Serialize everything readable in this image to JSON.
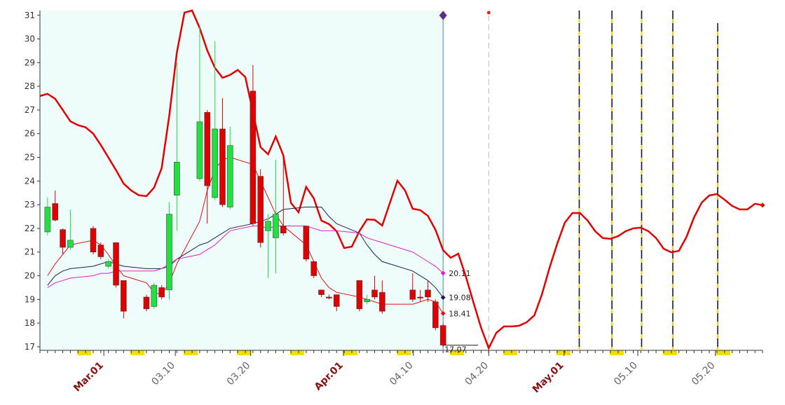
{
  "chart_data": {
    "type": "candlestick",
    "xlim": [
      0,
      95
    ],
    "ylim": [
      16.85,
      31.2
    ],
    "yticks": [
      17,
      18,
      19,
      20,
      21,
      22,
      23,
      24,
      25,
      26,
      27,
      28,
      29,
      30,
      31
    ],
    "xticks": [
      {
        "value": 8.4,
        "label": "Mar.01"
      },
      {
        "value": 17.8,
        "label": "03.10"
      },
      {
        "value": 27.7,
        "label": "03.20"
      },
      {
        "value": 39.9,
        "label": "Apr.01"
      },
      {
        "value": 49.1,
        "label": "04.10"
      },
      {
        "value": 59,
        "label": "04.20"
      },
      {
        "value": 68.9,
        "label": "May.01"
      },
      {
        "value": 78.6,
        "label": "05.10"
      },
      {
        "value": 88.8,
        "label": "05.20"
      }
    ],
    "up_color": "#22e040",
    "down_color": "#e00000",
    "candles": {
      "x": [
        1,
        2,
        3,
        4,
        7,
        8,
        9,
        10,
        11,
        14,
        15,
        16,
        17,
        18,
        21,
        22,
        23,
        24,
        25,
        28,
        29,
        30,
        31,
        32,
        35,
        36,
        37,
        38,
        39,
        42,
        43,
        44,
        45,
        49,
        50,
        51,
        52,
        53
      ],
      "open": [
        21.85,
        23.05,
        21.95,
        21.2,
        22.0,
        21.3,
        20.4,
        21.4,
        19.8,
        19.1,
        18.7,
        19.5,
        19.4,
        23.4,
        24.1,
        26.9,
        23.3,
        26.2,
        22.9,
        27.8,
        24.2,
        21.9,
        21.6,
        22.1,
        22.1,
        20.6,
        19.4,
        19.1,
        19.2,
        19.8,
        18.9,
        19.4,
        19.3,
        19.4,
        19.1,
        19.4,
        18.9,
        17.9
      ],
      "high": [
        23.3,
        23.6,
        22.0,
        22.8,
        22.1,
        21.4,
        20.7,
        21.4,
        19.8,
        19.2,
        19.7,
        19.6,
        23.1,
        29.0,
        30.5,
        27.0,
        29.9,
        27.5,
        26.3,
        28.9,
        24.5,
        22.6,
        24.9,
        25.1,
        22.1,
        20.6,
        19.4,
        19.2,
        19.2,
        19.8,
        19.2,
        20.0,
        19.8,
        20.1,
        19.4,
        19.8,
        19.0,
        18.0
      ],
      "low": [
        21.7,
        22.3,
        20.9,
        21.1,
        20.9,
        20.7,
        20.3,
        19.5,
        18.2,
        18.5,
        18.6,
        19.0,
        19.0,
        21.9,
        24.0,
        22.2,
        23.2,
        22.9,
        22.8,
        22.1,
        21.2,
        19.9,
        20.1,
        21.7,
        20.6,
        19.9,
        19.1,
        19.0,
        18.5,
        18.5,
        18.8,
        19.0,
        18.4,
        18.9,
        18.9,
        18.9,
        17.7,
        17.0
      ],
      "close": [
        22.9,
        22.35,
        21.2,
        21.5,
        21.0,
        20.8,
        20.6,
        19.6,
        18.5,
        18.6,
        19.6,
        19.1,
        22.6,
        24.8,
        26.5,
        23.8,
        26.2,
        23.0,
        25.5,
        22.2,
        21.4,
        22.3,
        22.6,
        21.8,
        20.7,
        20.0,
        19.2,
        19.1,
        18.7,
        18.6,
        19.0,
        19.1,
        18.5,
        19.0,
        19.1,
        19.1,
        17.8,
        17.07
      ]
    },
    "series": [
      {
        "color": "#e00000",
        "x": [
          0,
          1,
          2,
          3,
          4,
          5,
          6,
          7,
          8,
          9,
          10,
          11,
          12,
          13,
          14,
          15,
          16,
          17,
          18,
          19,
          20,
          21,
          22,
          23,
          24,
          25,
          26,
          27,
          28,
          29,
          30,
          31,
          32,
          33,
          34,
          35,
          36,
          37,
          38,
          39,
          40,
          41,
          42,
          43,
          44,
          45,
          46,
          47,
          48,
          49,
          50,
          51,
          52,
          53,
          54,
          55,
          56,
          57,
          58,
          59,
          60,
          61,
          62,
          63,
          64,
          65,
          66,
          67,
          68,
          69,
          70,
          71,
          72,
          73,
          74,
          75,
          76,
          77,
          78,
          79,
          80,
          81,
          82,
          83,
          84,
          85,
          86,
          87,
          88,
          89,
          90,
          91,
          92,
          93,
          94,
          95
        ],
        "values": [
          27.59,
          27.68,
          27.47,
          27.0,
          26.52,
          26.36,
          26.27,
          26.0,
          25.52,
          24.99,
          24.46,
          23.89,
          23.6,
          23.4,
          23.36,
          23.72,
          24.54,
          26.76,
          29.43,
          31.11,
          31.2,
          30.46,
          29.51,
          28.78,
          28.36,
          28.48,
          28.69,
          28.39,
          26.91,
          25.43,
          25.13,
          25.88,
          25.08,
          23.07,
          22.68,
          23.75,
          23.27,
          22.33,
          22.18,
          21.88,
          21.17,
          21.23,
          21.88,
          22.38,
          22.36,
          22.12,
          23.07,
          24.01,
          23.6,
          22.83,
          22.77,
          22.53,
          21.94,
          21.08,
          20.76,
          20.93,
          19.96,
          18.86,
          17.8,
          16.94,
          17.59,
          17.86,
          17.86,
          17.89,
          18.04,
          18.33,
          19.22,
          20.34,
          21.35,
          22.24,
          22.65,
          22.65,
          22.33,
          21.88,
          21.59,
          21.56,
          21.67,
          21.88,
          22.0,
          22.03,
          21.88,
          21.59,
          21.14,
          20.99,
          21.05,
          21.64,
          22.47,
          23.09,
          23.39,
          23.45,
          23.21,
          22.95,
          22.8,
          22.8,
          23.04,
          22.98
        ]
      },
      {
        "color": "#e01010",
        "x": [
          1,
          2,
          3,
          4,
          7,
          8,
          9,
          10,
          11,
          14,
          15,
          16,
          17,
          18,
          21,
          22,
          23,
          24,
          25,
          28,
          29,
          30,
          31,
          32,
          35,
          36,
          37,
          38,
          39,
          42,
          43,
          44,
          45,
          49,
          50,
          51,
          52,
          53
        ],
        "values": [
          20.0,
          20.5,
          20.9,
          21.3,
          21.5,
          21.3,
          20.9,
          20.4,
          20.0,
          19.7,
          19.3,
          19.2,
          19.7,
          20.5,
          22.3,
          23.6,
          24.5,
          24.9,
          25.0,
          24.7,
          24.0,
          23.3,
          22.6,
          22.1,
          21.3,
          20.6,
          19.9,
          19.5,
          19.3,
          19.1,
          19.0,
          18.9,
          18.8,
          18.8,
          18.9,
          19.0,
          18.9,
          18.41
        ]
      },
      {
        "color": "#202040",
        "x": [
          1,
          2,
          3,
          4,
          7,
          8,
          9,
          10,
          11,
          14,
          15,
          16,
          17,
          18,
          21,
          22,
          23,
          24,
          25,
          28,
          29,
          30,
          31,
          32,
          35,
          36,
          37,
          38,
          39,
          42,
          43,
          44,
          45,
          49,
          50,
          51,
          52,
          53
        ],
        "values": [
          19.6,
          20.0,
          20.2,
          20.3,
          20.4,
          20.5,
          20.6,
          20.5,
          20.4,
          20.3,
          20.3,
          20.3,
          20.4,
          20.7,
          21.3,
          21.4,
          21.6,
          21.8,
          22.0,
          22.2,
          22.3,
          22.4,
          22.6,
          22.8,
          22.9,
          22.9,
          22.9,
          22.5,
          22.2,
          21.8,
          21.3,
          20.9,
          20.6,
          20.2,
          20.0,
          19.8,
          19.5,
          19.08
        ]
      },
      {
        "color": "#e020c0",
        "x": [
          1,
          2,
          3,
          4,
          7,
          8,
          9,
          10,
          11,
          14,
          15,
          16,
          17,
          18,
          21,
          22,
          23,
          24,
          25,
          28,
          29,
          30,
          31,
          32,
          35,
          36,
          37,
          38,
          39,
          42,
          43,
          44,
          45,
          49,
          50,
          51,
          52,
          53
        ],
        "values": [
          19.5,
          19.7,
          19.8,
          19.9,
          20.0,
          20.1,
          20.1,
          20.2,
          20.2,
          20.2,
          20.2,
          20.3,
          20.5,
          20.7,
          20.9,
          21.1,
          21.3,
          21.6,
          21.9,
          22.1,
          22.1,
          22.0,
          22.1,
          22.1,
          22.1,
          22.0,
          21.9,
          21.9,
          21.9,
          21.8,
          21.6,
          21.5,
          21.4,
          21.0,
          20.8,
          20.6,
          20.4,
          20.11
        ]
      }
    ],
    "vlines": [
      {
        "x": 53,
        "style": "solid",
        "color": "#3a8fa0"
      },
      {
        "x": 59,
        "style": "dashed",
        "color": "#bbbbbb"
      },
      {
        "x": 70.9,
        "style": "yellow",
        "color": "#101080"
      },
      {
        "x": 75.2,
        "style": "yellow",
        "color": "#101080"
      },
      {
        "x": 79.1,
        "style": "yellow",
        "color": "#101080"
      },
      {
        "x": 83.2,
        "style": "yellow",
        "color": "#101080"
      },
      {
        "x": 89.1,
        "style": "yellow",
        "color": "#101080"
      }
    ]
  }
}
